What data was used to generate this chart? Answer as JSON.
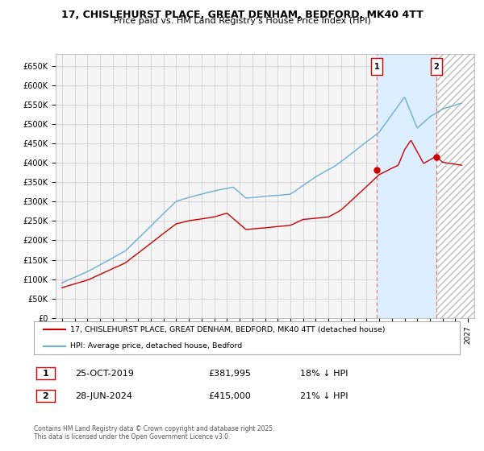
{
  "title": "17, CHISLEHURST PLACE, GREAT DENHAM, BEDFORD, MK40 4TT",
  "subtitle": "Price paid vs. HM Land Registry's House Price Index (HPI)",
  "ylabel_ticks": [
    "£0",
    "£50K",
    "£100K",
    "£150K",
    "£200K",
    "£250K",
    "£300K",
    "£350K",
    "£400K",
    "£450K",
    "£500K",
    "£550K",
    "£600K",
    "£650K"
  ],
  "ytick_values": [
    0,
    50000,
    100000,
    150000,
    200000,
    250000,
    300000,
    350000,
    400000,
    450000,
    500000,
    550000,
    600000,
    650000
  ],
  "ylim": [
    0,
    680000
  ],
  "xlim_start": 1994.5,
  "xlim_end": 2027.5,
  "hpi_color": "#6baed6",
  "price_color": "#cc0000",
  "vline_color": "#e87070",
  "marker1_x": 2019.82,
  "marker2_x": 2024.49,
  "marker1_label": "1",
  "marker2_label": "2",
  "dot1_y": 381995,
  "dot2_y": 415000,
  "transaction1_date": "25-OCT-2019",
  "transaction1_price": "£381,995",
  "transaction1_hpi": "18% ↓ HPI",
  "transaction2_date": "28-JUN-2024",
  "transaction2_price": "£415,000",
  "transaction2_hpi": "21% ↓ HPI",
  "legend_line1": "17, CHISLEHURST PLACE, GREAT DENHAM, BEDFORD, MK40 4TT (detached house)",
  "legend_line2": "HPI: Average price, detached house, Bedford",
  "footer": "Contains HM Land Registry data © Crown copyright and database right 2025.\nThis data is licensed under the Open Government Licence v3.0.",
  "background_color": "#ffffff",
  "plot_bg_color": "#f5f5f5",
  "grid_color": "#cccccc",
  "shade_between_color": "#ddeeff",
  "shade_after_color": "#e8e8e8"
}
